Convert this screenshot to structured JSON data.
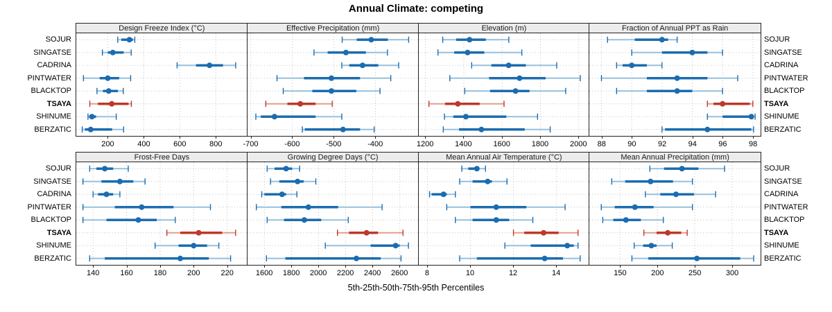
{
  "title": "Annual Climate: competing",
  "caption": "5th-25th-50th-75th-95th Percentiles",
  "percentile_labels": [
    "5th",
    "25th",
    "50th",
    "75th",
    "95th"
  ],
  "categories": [
    "SOJUR",
    "SINGATSE",
    "CADRINA",
    "PINTWATER",
    "BLACKTOP",
    "TSAYA",
    "SHINUME",
    "BERZATIC"
  ],
  "highlight_site": "TSAYA",
  "colors": {
    "blue": "#1b6cb0",
    "blue_light": "#96c0de",
    "red": "#bd392a",
    "red_light": "#e39b8f",
    "grid": "#c3c3c3",
    "strip_bg": "#ececec",
    "panel_border": "#222222",
    "text": "#000000"
  },
  "chart_data": [
    {
      "type": "dotplot-interval",
      "title": "Design Freeze Index (°C)",
      "row": 0,
      "col": 0,
      "xlim": [
        25,
        975
      ],
      "ticks": [
        200,
        400,
        600,
        800
      ],
      "series": [
        {
          "site": "SOJUR",
          "percentiles": [
            255,
            275,
            320,
            340,
            350
          ]
        },
        {
          "site": "SINGATSE",
          "percentiles": [
            170,
            200,
            228,
            288,
            330
          ]
        },
        {
          "site": "CADRINA",
          "percentiles": [
            585,
            690,
            765,
            840,
            910
          ]
        },
        {
          "site": "PINTWATER",
          "percentiles": [
            65,
            155,
            200,
            263,
            327
          ]
        },
        {
          "site": "BLACKTOP",
          "percentiles": [
            140,
            173,
            205,
            256,
            286
          ]
        },
        {
          "site": "TSAYA",
          "percentiles": [
            100,
            145,
            222,
            315,
            331
          ]
        },
        {
          "site": "SHINUME",
          "percentiles": [
            90,
            96,
            112,
            135,
            247
          ]
        },
        {
          "site": "BERZATIC",
          "percentiles": [
            58,
            73,
            105,
            224,
            288
          ]
        }
      ]
    },
    {
      "type": "dotplot-interval",
      "title": "Effective Precipitation (mm)",
      "row": 0,
      "col": 1,
      "xlim": [
        -708,
        -296
      ],
      "ticks": [
        -700,
        -600,
        -500,
        -400
      ],
      "series": [
        {
          "site": "SOJUR",
          "percentiles": [
            -480,
            -445,
            -410,
            -370,
            -320
          ]
        },
        {
          "site": "SINGATSE",
          "percentiles": [
            -548,
            -515,
            -471,
            -423,
            -371
          ]
        },
        {
          "site": "CADRINA",
          "percentiles": [
            -481,
            -463,
            -431,
            -393,
            -344
          ]
        },
        {
          "site": "PINTWATER",
          "percentiles": [
            -637,
            -572,
            -506,
            -437,
            -363
          ]
        },
        {
          "site": "BLACKTOP",
          "percentiles": [
            -622,
            -552,
            -506,
            -446,
            -389
          ]
        },
        {
          "site": "TSAYA",
          "percentiles": [
            -664,
            -612,
            -581,
            -544,
            -504
          ]
        },
        {
          "site": "SHINUME",
          "percentiles": [
            -688,
            -676,
            -643,
            -544,
            -481
          ]
        },
        {
          "site": "BERZATIC",
          "percentiles": [
            -576,
            -570,
            -478,
            -437,
            -403
          ]
        }
      ]
    },
    {
      "type": "dotplot-interval",
      "title": "Elevation (m)",
      "row": 0,
      "col": 2,
      "xlim": [
        1165,
        2058
      ],
      "ticks": [
        1200,
        1400,
        1600,
        1800,
        2000
      ],
      "series": [
        {
          "site": "SOJUR",
          "percentiles": [
            1290,
            1360,
            1430,
            1515,
            1635
          ]
        },
        {
          "site": "SINGATSE",
          "percentiles": [
            1265,
            1350,
            1420,
            1507,
            1703
          ]
        },
        {
          "site": "CADRINA",
          "percentiles": [
            1441,
            1544,
            1634,
            1724,
            1885
          ]
        },
        {
          "site": "PINTWATER",
          "percentiles": [
            1327,
            1532,
            1691,
            1827,
            2008
          ]
        },
        {
          "site": "BLACKTOP",
          "percentiles": [
            1405,
            1537,
            1670,
            1743,
            1932
          ]
        },
        {
          "site": "TSAYA",
          "percentiles": [
            1218,
            1302,
            1369,
            1483,
            1610
          ]
        },
        {
          "site": "SHINUME",
          "percentiles": [
            1299,
            1345,
            1411,
            1622,
            1785
          ]
        },
        {
          "site": "BERZATIC",
          "percentiles": [
            1293,
            1375,
            1492,
            1718,
            1851
          ]
        }
      ]
    },
    {
      "type": "dotplot-interval",
      "title": "Fraction of Annual PPT as Rain",
      "row": 0,
      "col": 3,
      "xlim": [
        87.2,
        98.5
      ],
      "ticks": [
        88,
        90,
        92,
        94,
        96,
        98
      ],
      "series": [
        {
          "site": "SOJUR",
          "percentiles": [
            88.4,
            90.2,
            92.0,
            92.4,
            93.0
          ]
        },
        {
          "site": "SINGATSE",
          "percentiles": [
            90.0,
            92.0,
            94.0,
            95.0,
            96.0
          ]
        },
        {
          "site": "CADRINA",
          "percentiles": [
            89.0,
            89.4,
            90.0,
            91.0,
            92.0
          ]
        },
        {
          "site": "PINTWATER",
          "percentiles": [
            88.0,
            91.0,
            93.0,
            95.0,
            97.0
          ]
        },
        {
          "site": "BLACKTOP",
          "percentiles": [
            89.0,
            91.0,
            93.0,
            94.0,
            96.0
          ]
        },
        {
          "site": "TSAYA",
          "percentiles": [
            95.0,
            95.4,
            96.0,
            97.8,
            98.0
          ]
        },
        {
          "site": "SHINUME",
          "percentiles": [
            95.0,
            96.0,
            97.9,
            98.0,
            98.15
          ]
        },
        {
          "site": "BERZATIC",
          "percentiles": [
            92.0,
            92.2,
            95.0,
            97.9,
            98.05
          ]
        }
      ]
    },
    {
      "type": "dotplot-interval",
      "title": "Frost-Free Days",
      "row": 1,
      "col": 0,
      "xlim": [
        130,
        232
      ],
      "ticks": [
        140,
        160,
        180,
        200,
        220
      ],
      "series": [
        {
          "site": "SOJUR",
          "percentiles": [
            138,
            142,
            147,
            152,
            161
          ]
        },
        {
          "site": "SINGATSE",
          "percentiles": [
            134,
            145,
            156,
            164,
            171
          ]
        },
        {
          "site": "CADRINA",
          "percentiles": [
            140,
            143,
            148,
            152,
            156
          ]
        },
        {
          "site": "PINTWATER",
          "percentiles": [
            134,
            153,
            169,
            188,
            210
          ]
        },
        {
          "site": "BLACKTOP",
          "percentiles": [
            134,
            148,
            167,
            178,
            189
          ]
        },
        {
          "site": "TSAYA",
          "percentiles": [
            184,
            192,
            203,
            217,
            225
          ]
        },
        {
          "site": "SHINUME",
          "percentiles": [
            177,
            191,
            200,
            208,
            215
          ]
        },
        {
          "site": "BERZATIC",
          "percentiles": [
            138,
            147,
            192,
            209,
            222
          ]
        }
      ]
    },
    {
      "type": "dotplot-interval",
      "title": "Growing Degree Days (°C)",
      "row": 1,
      "col": 1,
      "xlim": [
        1475,
        2740
      ],
      "ticks": [
        1600,
        1800,
        2000,
        2200,
        2400,
        2600
      ],
      "series": [
        {
          "site": "SOJUR",
          "percentiles": [
            1620,
            1675,
            1760,
            1805,
            1860
          ]
        },
        {
          "site": "SINGATSE",
          "percentiles": [
            1645,
            1710,
            1845,
            1890,
            1980
          ]
        },
        {
          "site": "CADRINA",
          "percentiles": [
            1580,
            1600,
            1730,
            1760,
            1840
          ]
        },
        {
          "site": "PINTWATER",
          "percentiles": [
            1540,
            1725,
            1925,
            2145,
            2470
          ]
        },
        {
          "site": "BLACKTOP",
          "percentiles": [
            1620,
            1745,
            1895,
            2020,
            2220
          ]
        },
        {
          "site": "TSAYA",
          "percentiles": [
            2140,
            2225,
            2355,
            2440,
            2625
          ]
        },
        {
          "site": "SHINUME",
          "percentiles": [
            2050,
            2385,
            2570,
            2600,
            2665
          ]
        },
        {
          "site": "BERZATIC",
          "percentiles": [
            1615,
            1755,
            2280,
            2460,
            2610
          ]
        }
      ]
    },
    {
      "type": "dotplot-interval",
      "title": "Mean Annual Air Temperature (°C)",
      "row": 1,
      "col": 2,
      "xlim": [
        7.6,
        15.55
      ],
      "ticks": [
        8,
        10,
        12,
        14
      ],
      "series": [
        {
          "site": "SOJUR",
          "percentiles": [
            9.6,
            9.9,
            10.3,
            10.4,
            10.7
          ]
        },
        {
          "site": "SINGATSE",
          "percentiles": [
            9.5,
            10.1,
            10.8,
            11.0,
            11.7
          ]
        },
        {
          "site": "CADRINA",
          "percentiles": [
            8.1,
            8.2,
            8.75,
            8.9,
            9.3
          ]
        },
        {
          "site": "PINTWATER",
          "percentiles": [
            8.9,
            10.0,
            11.2,
            12.6,
            14.4
          ]
        },
        {
          "site": "BLACKTOP",
          "percentiles": [
            9.3,
            10.1,
            11.2,
            11.8,
            12.9
          ]
        },
        {
          "site": "TSAYA",
          "percentiles": [
            12.0,
            12.5,
            13.4,
            14.1,
            15.0
          ]
        },
        {
          "site": "SHINUME",
          "percentiles": [
            11.6,
            12.8,
            14.5,
            14.8,
            15.0
          ]
        },
        {
          "site": "BERZATIC",
          "percentiles": [
            9.5,
            10.3,
            13.45,
            14.3,
            15.1
          ]
        }
      ]
    },
    {
      "type": "dotplot-interval",
      "title": "Mean Annual Precipitation (mm)",
      "row": 1,
      "col": 3,
      "xlim": [
        109,
        338
      ],
      "ticks": [
        150,
        200,
        250,
        300
      ],
      "series": [
        {
          "site": "SOJUR",
          "percentiles": [
            190,
            209,
            233,
            255,
            290
          ]
        },
        {
          "site": "SINGATSE",
          "percentiles": [
            139,
            157,
            191,
            221,
            247
          ]
        },
        {
          "site": "CADRINA",
          "percentiles": [
            184,
            204,
            225,
            249,
            278
          ]
        },
        {
          "site": "PINTWATER",
          "percentiles": [
            125,
            143,
            170,
            195,
            247
          ]
        },
        {
          "site": "BLACKTOP",
          "percentiles": [
            127,
            141,
            158,
            178,
            208
          ]
        },
        {
          "site": "TSAYA",
          "percentiles": [
            182,
            199,
            214,
            232,
            240
          ]
        },
        {
          "site": "SHINUME",
          "percentiles": [
            169,
            181,
            192,
            199,
            220
          ]
        },
        {
          "site": "BERZATIC",
          "percentiles": [
            166,
            188,
            253,
            311,
            329
          ]
        }
      ]
    }
  ]
}
